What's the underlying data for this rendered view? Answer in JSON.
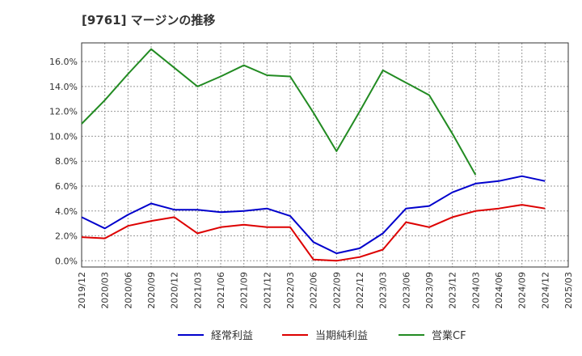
{
  "chart_data": {
    "type": "line",
    "title": "[9761]  マージンの推移",
    "xlabel": "",
    "ylabel": "",
    "ylim": [
      -0.5,
      17.5
    ],
    "yticks": [
      0,
      2,
      4,
      6,
      8,
      10,
      12,
      14,
      16
    ],
    "ytick_labels": [
      "0.0%",
      "2.0%",
      "4.0%",
      "6.0%",
      "8.0%",
      "10.0%",
      "12.0%",
      "14.0%",
      "16.0%"
    ],
    "grid": true,
    "legend_position": "bottom",
    "x": [
      "2019/12",
      "2020/03",
      "2020/06",
      "2020/09",
      "2020/12",
      "2021/03",
      "2021/06",
      "2021/09",
      "2021/12",
      "2022/03",
      "2022/06",
      "2022/09",
      "2022/12",
      "2023/03",
      "2023/06",
      "2023/09",
      "2023/12",
      "2024/03",
      "2024/06",
      "2024/09",
      "2024/12",
      "2025/03"
    ],
    "series": [
      {
        "name": "経常利益",
        "color": "#0000cc",
        "values": [
          3.5,
          2.6,
          3.7,
          4.6,
          4.1,
          4.1,
          3.9,
          4.0,
          4.2,
          3.6,
          1.5,
          0.6,
          1.0,
          2.2,
          4.2,
          4.4,
          5.5,
          6.2,
          6.4,
          6.8,
          6.4,
          null
        ]
      },
      {
        "name": "当期純利益",
        "color": "#dd0000",
        "values": [
          1.9,
          1.8,
          2.8,
          3.2,
          3.5,
          2.2,
          2.7,
          2.9,
          2.7,
          2.7,
          0.1,
          0.0,
          0.3,
          0.9,
          3.1,
          2.7,
          3.5,
          4.0,
          4.2,
          4.5,
          4.2,
          null
        ]
      },
      {
        "name": "営業CF",
        "color": "#228b22",
        "values": [
          11.0,
          12.9,
          15.0,
          17.0,
          15.5,
          14.0,
          14.8,
          15.7,
          14.9,
          14.8,
          11.9,
          8.8,
          12.0,
          15.3,
          14.3,
          13.3,
          10.2,
          6.9,
          null,
          null,
          null,
          null
        ]
      }
    ]
  }
}
